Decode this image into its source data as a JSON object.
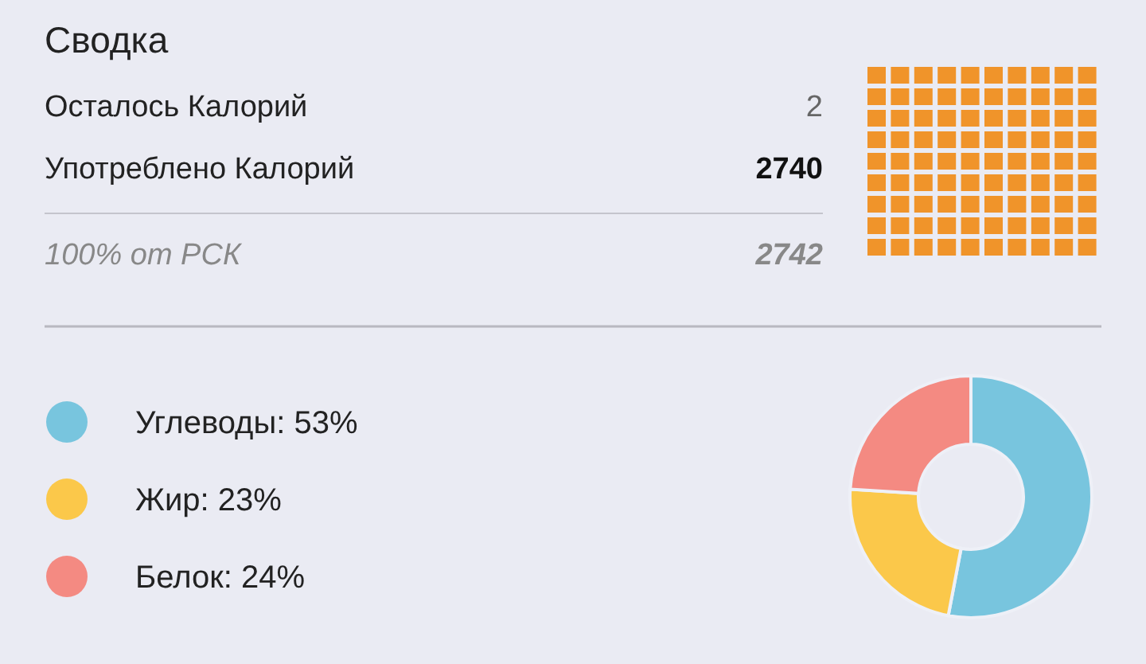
{
  "chart_data": [
    {
      "type": "other",
      "title": "Сводка",
      "categories": [
        "Осталось Калорий",
        "Употреблено Калорий",
        "100% от РСК"
      ],
      "values": [
        2,
        2740,
        2742
      ],
      "data_labels": true
    },
    {
      "type": "donut",
      "categories": [
        "Углеводы",
        "Жир",
        "Белок"
      ],
      "values": [
        53,
        23,
        24
      ],
      "value_labels": [
        "53%",
        "23%",
        "24%"
      ],
      "colors": [
        "#78c5de",
        "#fbc84a",
        "#f48a82"
      ],
      "legend": "left"
    }
  ]
}
